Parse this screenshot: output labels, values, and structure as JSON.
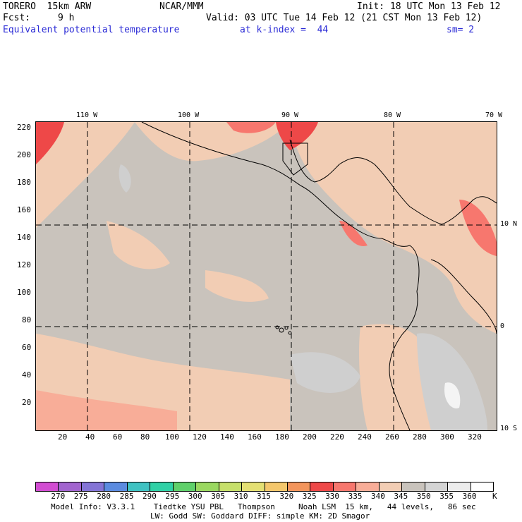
{
  "header": {
    "model": "TORERO  15km ARW",
    "org": "NCAR/MMM",
    "init": "Init: 18 UTC Mon 13 Feb 12",
    "fcst_label": "Fcst:",
    "fcst_value": "9 h",
    "valid": "Valid: 03 UTC Tue 14 Feb 12 (21 CST Mon 13 Feb 12)",
    "field": "Equivalent potential temperature",
    "level": "at k-index =  44",
    "smoothing": "sm= 2"
  },
  "map": {
    "lon_labels": [
      "110 W",
      "100 W",
      "90 W",
      "80 W",
      "70 W"
    ],
    "lat_labels": [
      "10 N",
      "0",
      "10 S"
    ],
    "y_ticks": [
      "220",
      "200",
      "180",
      "160",
      "140",
      "120",
      "100",
      "80",
      "60",
      "40",
      "20"
    ],
    "x_ticks": [
      "20",
      "40",
      "60",
      "80",
      "100",
      "120",
      "140",
      "160",
      "180",
      "200",
      "220",
      "240",
      "260",
      "280",
      "300",
      "320"
    ],
    "colors": {
      "background_345_350": "#c9c3bc",
      "warm_340_345": "#f2cdb4",
      "warm_335_340": "#f8ad98",
      "warm_330_335": "#f7776e",
      "warm_325_330": "#ee4848",
      "cool_350_355": "#cfcfcf",
      "cool_355_360": "#f4f4f4"
    }
  },
  "colorbar": {
    "labels": [
      "270",
      "275",
      "280",
      "285",
      "290",
      "295",
      "300",
      "305",
      "310",
      "315",
      "320",
      "325",
      "330",
      "335",
      "340",
      "345",
      "350",
      "355",
      "360"
    ],
    "unit": "K",
    "colors": [
      "#d24dd2",
      "#a264cf",
      "#8474d6",
      "#5b8be0",
      "#3fc2c2",
      "#2fd1a6",
      "#5fd06a",
      "#9ad860",
      "#c6e06a",
      "#e4e073",
      "#f4c76c",
      "#f3955c",
      "#ee4848",
      "#f7776e",
      "#f8ad98",
      "#f2cdb4",
      "#c9c3bc",
      "#d4d4d4",
      "#ececec",
      "#ffffff"
    ]
  },
  "footer": {
    "line1": "Model Info: V3.3.1    Tiedtke YSU PBL   Thompson     Noah LSM  15 km,   44 levels,   86 sec",
    "line2": "LW: Godd SW: Goddard DIFF: simple KM: 2D Smagor"
  }
}
